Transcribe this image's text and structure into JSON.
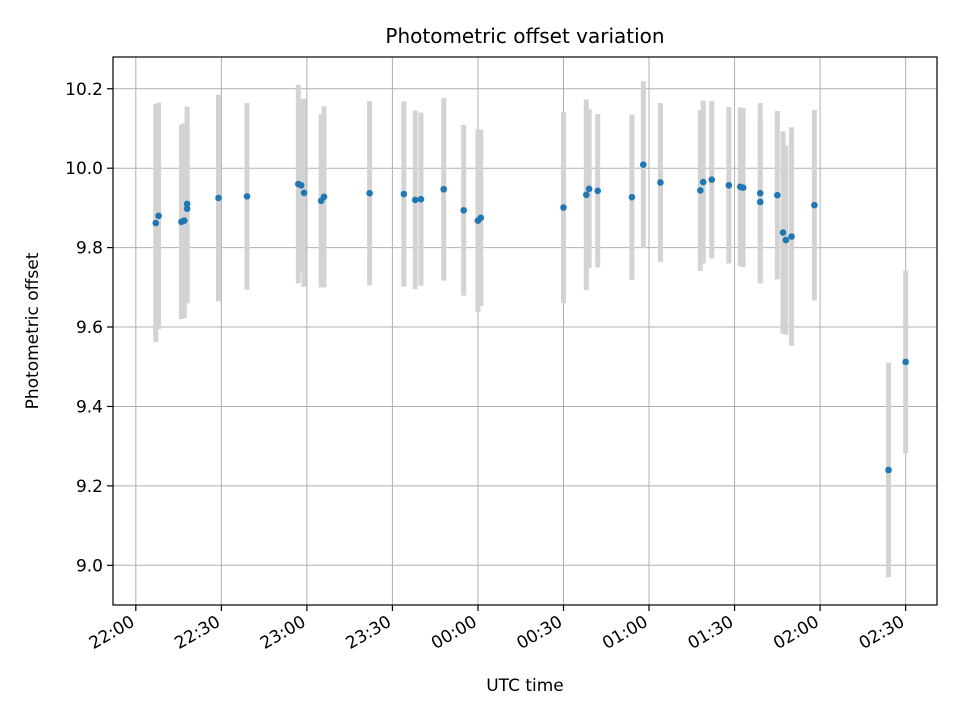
{
  "chart_data": {
    "type": "scatter",
    "title": "Photometric offset variation",
    "xlabel": "UTC time",
    "ylabel": "Photometric offset",
    "grid": true,
    "legend": "none",
    "x_tick_labels": [
      "22:00",
      "22:30",
      "23:00",
      "23:30",
      "00:00",
      "00:30",
      "01:00",
      "01:30",
      "02:00",
      "02:30"
    ],
    "y_tick_labels": [
      "9.0",
      "9.2",
      "9.4",
      "9.6",
      "9.8",
      "10.0",
      "10.2"
    ],
    "y_ticks": [
      9.0,
      9.2,
      9.4,
      9.6,
      9.8,
      10.0,
      10.2
    ],
    "ylim": [
      8.9,
      10.28
    ],
    "colors": {
      "point": "#1f77b4",
      "error_bar": "#d3d3d3",
      "grid": "#b0b0b0"
    },
    "series": [
      {
        "x": [
          "22:07",
          "22:08",
          "22:16",
          "22:17",
          "22:18",
          "22:18",
          "22:29",
          "22:39",
          "22:57",
          "22:58",
          "22:59",
          "23:05",
          "23:06",
          "23:22",
          "23:34",
          "23:38",
          "23:40",
          "23:48",
          "23:55",
          "00:00",
          "00:01",
          "00:30",
          "00:38",
          "00:39",
          "00:42",
          "00:54",
          "00:58",
          "01:04",
          "01:18",
          "01:19",
          "01:22",
          "01:28",
          "01:32",
          "01:33",
          "01:39",
          "01:39",
          "01:45",
          "01:47",
          "01:48",
          "01:50",
          "01:58",
          "02:24",
          "02:30"
        ],
        "y": [
          9.862,
          9.88,
          9.865,
          9.868,
          9.91,
          9.898,
          9.925,
          9.929,
          9.96,
          9.957,
          9.938,
          9.918,
          9.928,
          9.937,
          9.935,
          9.92,
          9.922,
          9.947,
          9.894,
          9.868,
          9.875,
          9.901,
          9.933,
          9.948,
          9.943,
          9.927,
          10.009,
          9.964,
          9.944,
          9.965,
          9.971,
          9.957,
          9.953,
          9.951,
          9.937,
          9.915,
          9.932,
          9.838,
          9.819,
          9.828,
          9.907,
          9.24,
          9.512
        ],
        "yerr": [
          0.3,
          0.285,
          0.245,
          0.245,
          0.245,
          0.238,
          0.26,
          0.235,
          0.25,
          0.217,
          0.237,
          0.218,
          0.228,
          0.232,
          0.233,
          0.225,
          0.218,
          0.23,
          0.215,
          0.23,
          0.222,
          0.24,
          0.24,
          0.2,
          0.193,
          0.208,
          0.21,
          0.2,
          0.203,
          0.205,
          0.198,
          0.197,
          0.2,
          0.2,
          0.227,
          0.205,
          0.212,
          0.255,
          0.238,
          0.275,
          0.24,
          0.27,
          0.23
        ]
      }
    ]
  }
}
